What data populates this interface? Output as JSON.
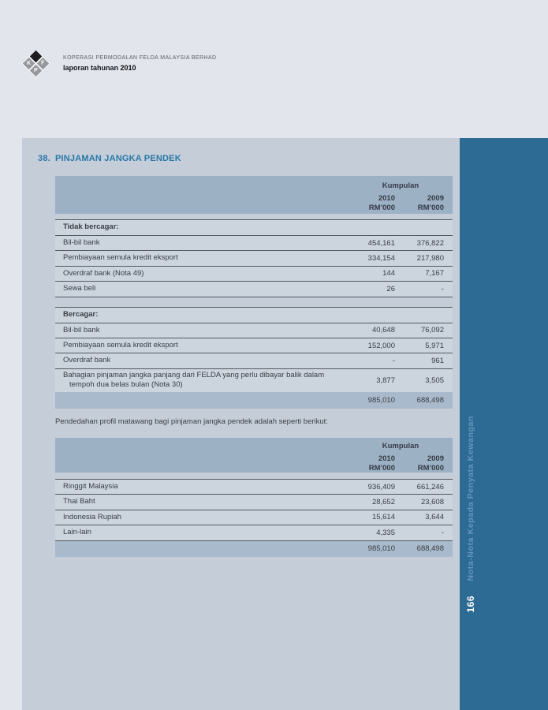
{
  "page": {
    "header": {
      "company": "KOPERASI PERMODALAN FELDA MALAYSIA BERHAD",
      "report_prefix": "laporan tahunan ",
      "report_year": "2010",
      "logo_letters": {
        "left": "K",
        "right": "F",
        "bottom": "P"
      }
    },
    "section_number": "38.",
    "section_title": "PINJAMAN JANGKA PENDEK",
    "col_header": {
      "group": "Kumpulan",
      "year_2010": "2010",
      "year_2009": "2009",
      "unit": "RM’000"
    },
    "table1": {
      "rows": [
        {
          "type": "section",
          "label": "Tidak bercagar:"
        },
        {
          "type": "item",
          "label": "Bil-bil bank",
          "v2010": "454,161",
          "v2009": "376,822"
        },
        {
          "type": "item",
          "label": "Pembiayaan semula kredit eksport",
          "v2010": "334,154",
          "v2009": "217,980"
        },
        {
          "type": "item",
          "label": "Overdraf bank (Nota 49)",
          "v2010": "144",
          "v2009": "7,167"
        },
        {
          "type": "item",
          "label": "Sewa beli",
          "v2010": "26",
          "v2009": "-"
        },
        {
          "type": "end"
        },
        {
          "type": "spacer"
        },
        {
          "type": "section",
          "label": "Bercagar:"
        },
        {
          "type": "item",
          "label": "Bil-bil bank",
          "v2010": "40,648",
          "v2009": "76,092"
        },
        {
          "type": "item",
          "label": "Pembiayaan semula kredit eksport",
          "v2010": "152,000",
          "v2009": "5,971"
        },
        {
          "type": "item",
          "label": "Overdraf bank",
          "v2010": "-",
          "v2009": "961"
        },
        {
          "type": "item",
          "label": "Bahagian pinjaman jangka panjang dari FELDA yang perlu dibayar balik dalam",
          "label2": "tempoh dua belas bulan (Nota 30)",
          "v2010": "3,877",
          "v2009": "3,505"
        },
        {
          "type": "total",
          "v2010": "985,010",
          "v2009": "688,498"
        }
      ]
    },
    "paragraph": "Pendedahan profil matawang bagi pinjaman jangka pendek adalah seperti berikut:",
    "table2": {
      "rows": [
        {
          "type": "item",
          "label": "Ringgit Malaysia",
          "v2010": "936,409",
          "v2009": "661,246"
        },
        {
          "type": "item",
          "label": "Thai Baht",
          "v2010": "28,652",
          "v2009": "23,608"
        },
        {
          "type": "item",
          "label": "Indonesia Rupiah",
          "v2010": "15,614",
          "v2009": "3,644"
        },
        {
          "type": "item",
          "label": "Lain-lain",
          "v2010": "4,335",
          "v2009": "-"
        },
        {
          "type": "total",
          "line": true,
          "v2010": "985,010",
          "v2009": "688,498"
        }
      ]
    },
    "sidebar": {
      "vertical_label": "Nota-Nota Kepada Penyata Kewangan",
      "page_number": "166"
    },
    "colors": {
      "outer_background": "#e2e5ec",
      "panel_background": "#c5cdd8",
      "table_header_band": "#9db1c5",
      "total_band": "#a9bacc",
      "sidebar_blue": "#2d6b94",
      "title_blue": "#2878a8"
    }
  }
}
